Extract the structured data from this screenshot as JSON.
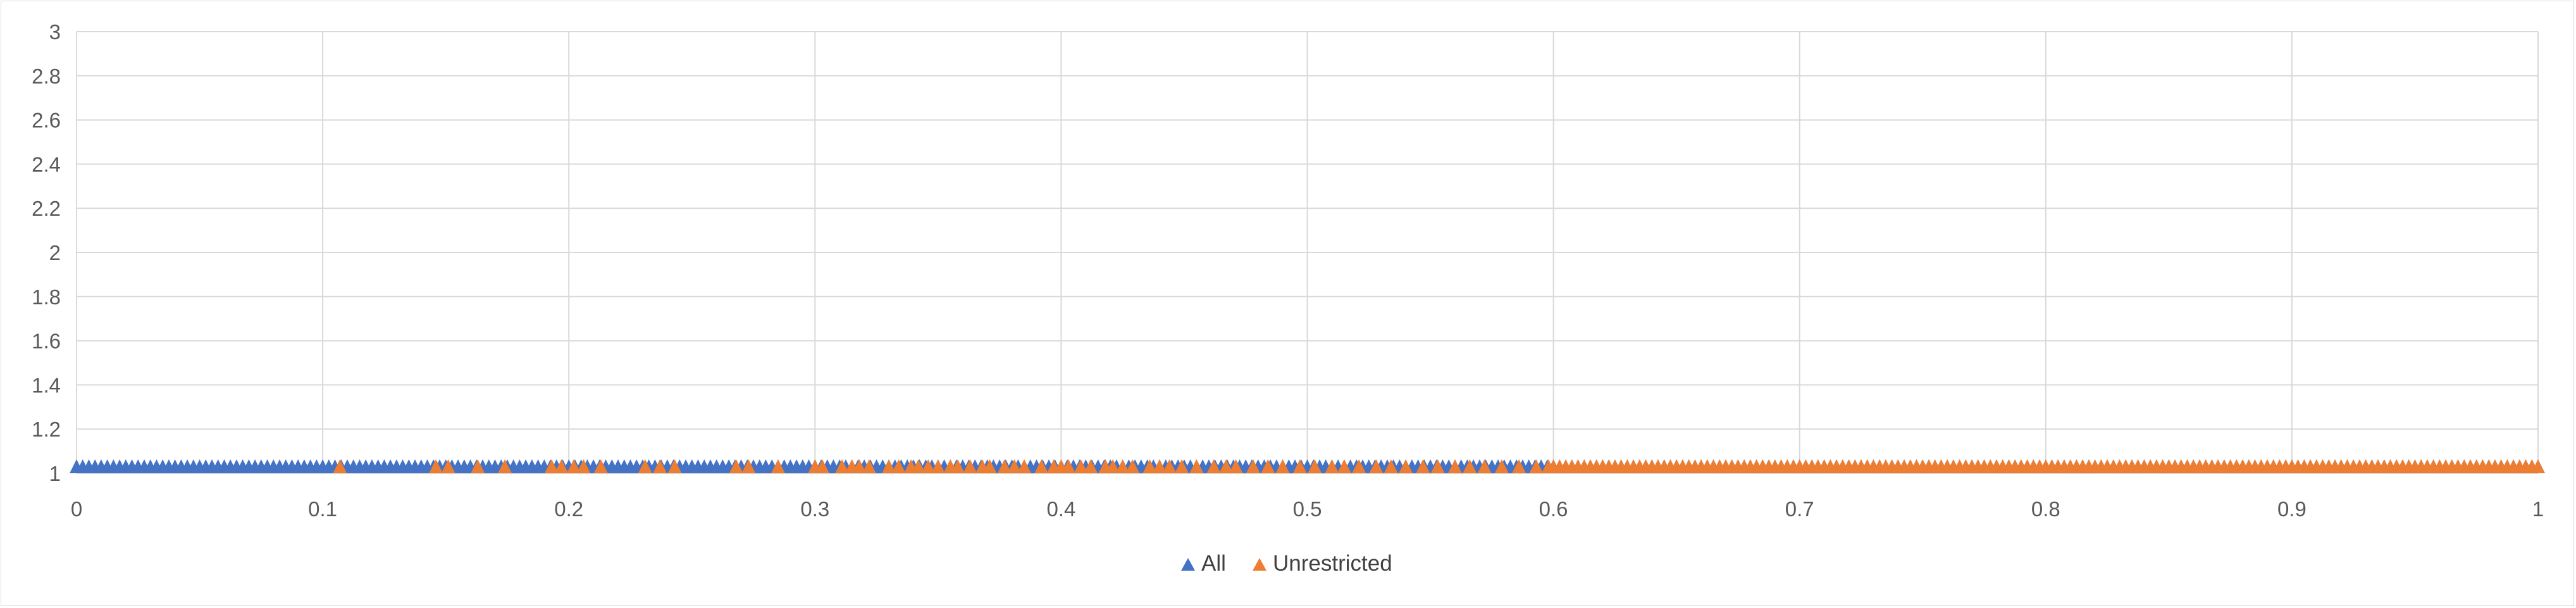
{
  "chart_data": {
    "type": "scatter",
    "marker": "triangle",
    "xlim": [
      0,
      1
    ],
    "ylim": [
      1,
      3
    ],
    "x_ticks": [
      "0",
      "0.1",
      "0.2",
      "0.3",
      "0.4",
      "0.5",
      "0.6",
      "0.7",
      "0.8",
      "0.9",
      "1"
    ],
    "y_ticks": [
      "1",
      "1.2",
      "1.4",
      "1.6",
      "1.8",
      "2",
      "2.2",
      "2.4",
      "2.6",
      "2.8",
      "3"
    ],
    "grid": true,
    "legend_position": "bottom",
    "series": [
      {
        "name": "All",
        "color": "#4472C4",
        "y": 1,
        "x_range": [
          0,
          1
        ],
        "density": "continuous along y = 1 from x = 0 to 1; visible from 0 to about 0.45, sparser afterwards and mostly covered by Unrestricted beyond 0.6"
      },
      {
        "name": "Unrestricted",
        "color": "#ED7D31",
        "y": 1,
        "points_x": [
          0.107,
          0.146,
          0.151,
          0.163,
          0.174,
          0.193,
          0.197,
          0.202,
          0.206,
          0.213,
          0.231,
          0.237,
          0.243,
          0.268,
          0.273,
          0.285,
          0.3,
          0.303,
          0.311,
          0.315,
          0.318,
          0.322,
          0.33,
          0.334,
          0.339,
          0.342,
          0.346,
          0.35,
          0.355,
          0.358,
          0.363,
          0.368,
          0.371,
          0.377,
          0.381,
          0.385,
          0.392,
          0.397,
          0.4,
          0.403,
          0.408,
          0.412,
          0.418,
          0.421,
          0.425,
          0.429,
          0.436,
          0.44,
          0.444,
          0.449,
          0.455,
          0.462,
          0.467,
          0.471,
          0.478,
          0.484,
          0.49,
          0.497,
          0.503,
          0.51,
          0.515,
          0.521,
          0.528,
          0.534,
          0.54,
          0.547,
          0.553,
          0.56,
          0.566,
          0.572,
          0.579,
          0.586,
          0.593,
          0.598
        ],
        "dense_range": [
          0.6,
          1
        ]
      }
    ]
  }
}
